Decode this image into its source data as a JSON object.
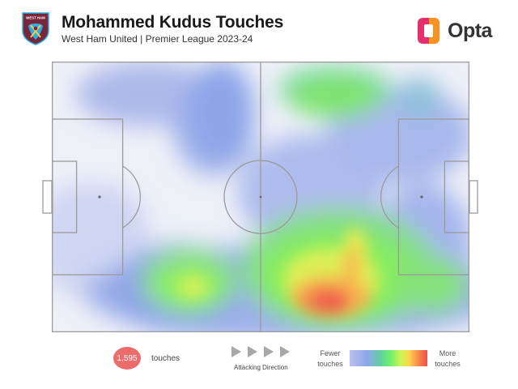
{
  "header": {
    "title": "Mohammed Kudus Touches",
    "subtitle": "West Ham United | Premier League 2023-24",
    "crest_text": "WEST HAM UNITED",
    "brand": "Opta"
  },
  "footer": {
    "touch_count": "1,595",
    "touch_label": "touches",
    "direction_label": "Attacking Direction",
    "legend_low": "Fewer touches",
    "legend_high": "More touches"
  },
  "colors": {
    "claret": "#7a263a",
    "sky_blue": "#2dafe5",
    "opta_orange": "#f7931e",
    "opta_pink": "#e52f6a",
    "badge": "#ec6b6b",
    "pitch_lines": "#9a9a9a"
  },
  "icons": {
    "crest": "west-ham-crest-icon",
    "brand": "opta-logo-icon",
    "direction": "play-arrow-icon"
  }
}
